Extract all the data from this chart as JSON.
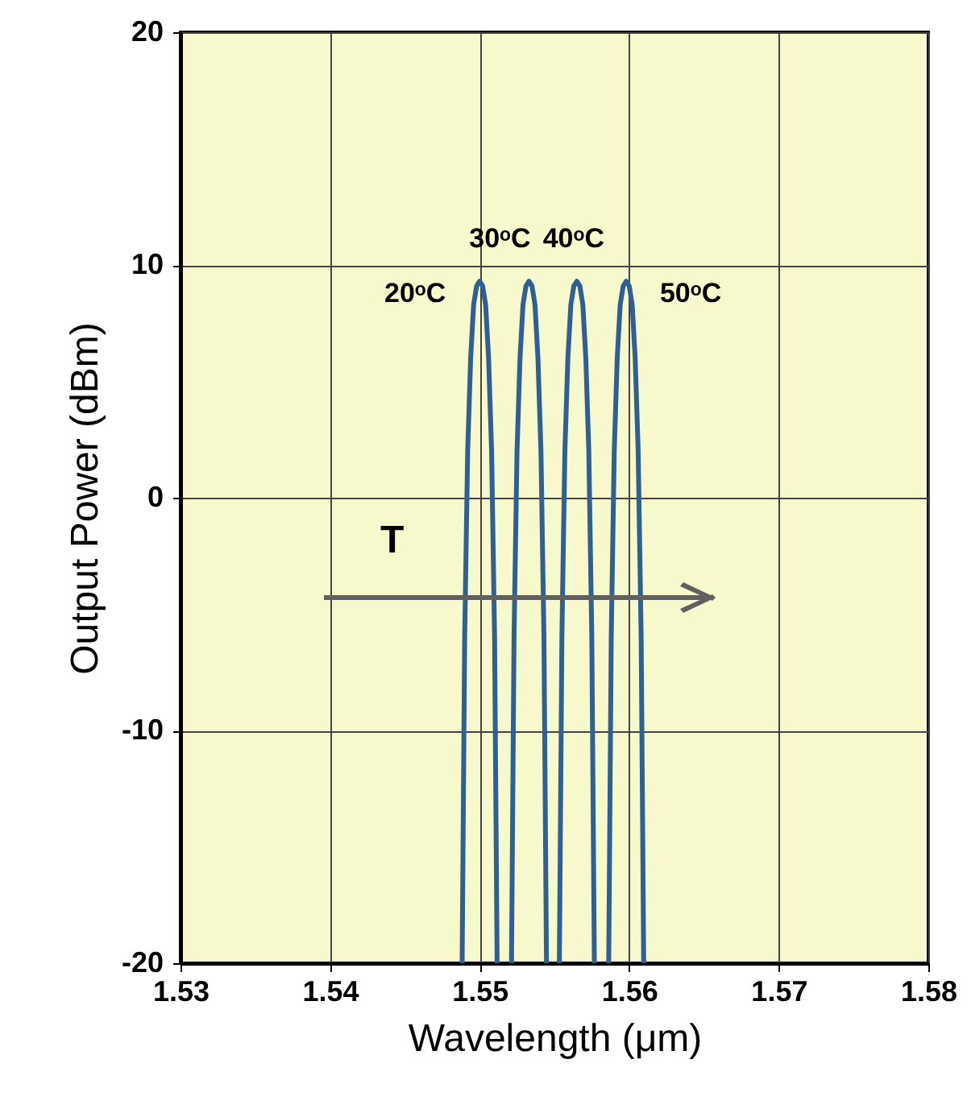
{
  "chart_data": {
    "type": "line",
    "xlabel": "Wavelength (μm)",
    "ylabel": "Output Power (dBm)",
    "xlim": [
      1.53,
      1.58
    ],
    "xticks": [
      1.53,
      1.54,
      1.55,
      1.56,
      1.57,
      1.58
    ],
    "ylim": [
      -20,
      20
    ],
    "yticks": [
      -20,
      -10,
      0,
      10,
      20
    ],
    "grid": true,
    "marker": "none",
    "line_style": "solid",
    "series": [
      {
        "color": "#2e5f95",
        "x": [
          1.54883,
          1.549,
          1.5492,
          1.5494,
          1.5496,
          1.5498,
          1.55,
          1.5502,
          1.5504,
          1.5506,
          1.5508,
          1.551,
          1.55117
        ],
        "values": [
          -20,
          -6,
          2,
          6,
          8.3,
          9.1,
          9.3,
          9.1,
          8.3,
          6,
          2,
          -6,
          -20
        ]
      },
      {
        "color": "#2e5f95",
        "x": [
          1.55213,
          1.5523,
          1.5525,
          1.5527,
          1.5529,
          1.5531,
          1.5533,
          1.5535,
          1.5537,
          1.5539,
          1.5541,
          1.5543,
          1.55447
        ],
        "values": [
          -20,
          -6,
          2,
          6,
          8.3,
          9.1,
          9.3,
          9.1,
          8.3,
          6,
          2,
          -6,
          -20
        ]
      },
      {
        "color": "#2e5f95",
        "x": [
          1.55533,
          1.5555,
          1.5557,
          1.5559,
          1.5561,
          1.5563,
          1.5565,
          1.5567,
          1.5569,
          1.5571,
          1.5573,
          1.5575,
          1.55767
        ],
        "values": [
          -20,
          -6,
          2,
          6,
          8.3,
          9.1,
          9.3,
          9.1,
          8.3,
          6,
          2,
          -6,
          -20
        ]
      },
      {
        "color": "#2e5f95",
        "x": [
          1.55863,
          1.5588,
          1.559,
          1.5592,
          1.5594,
          1.5596,
          1.5598,
          1.56,
          1.5602,
          1.5604,
          1.5606,
          1.5608,
          1.56097
        ],
        "values": [
          -20,
          -6,
          2,
          6,
          8.3,
          9.1,
          9.3,
          9.1,
          8.3,
          6,
          2,
          -6,
          -20
        ]
      }
    ],
    "annotations": [
      "20ᵒC",
      "30ᵒC",
      "40ᵒC",
      "50ᵒC",
      "T"
    ]
  }
}
